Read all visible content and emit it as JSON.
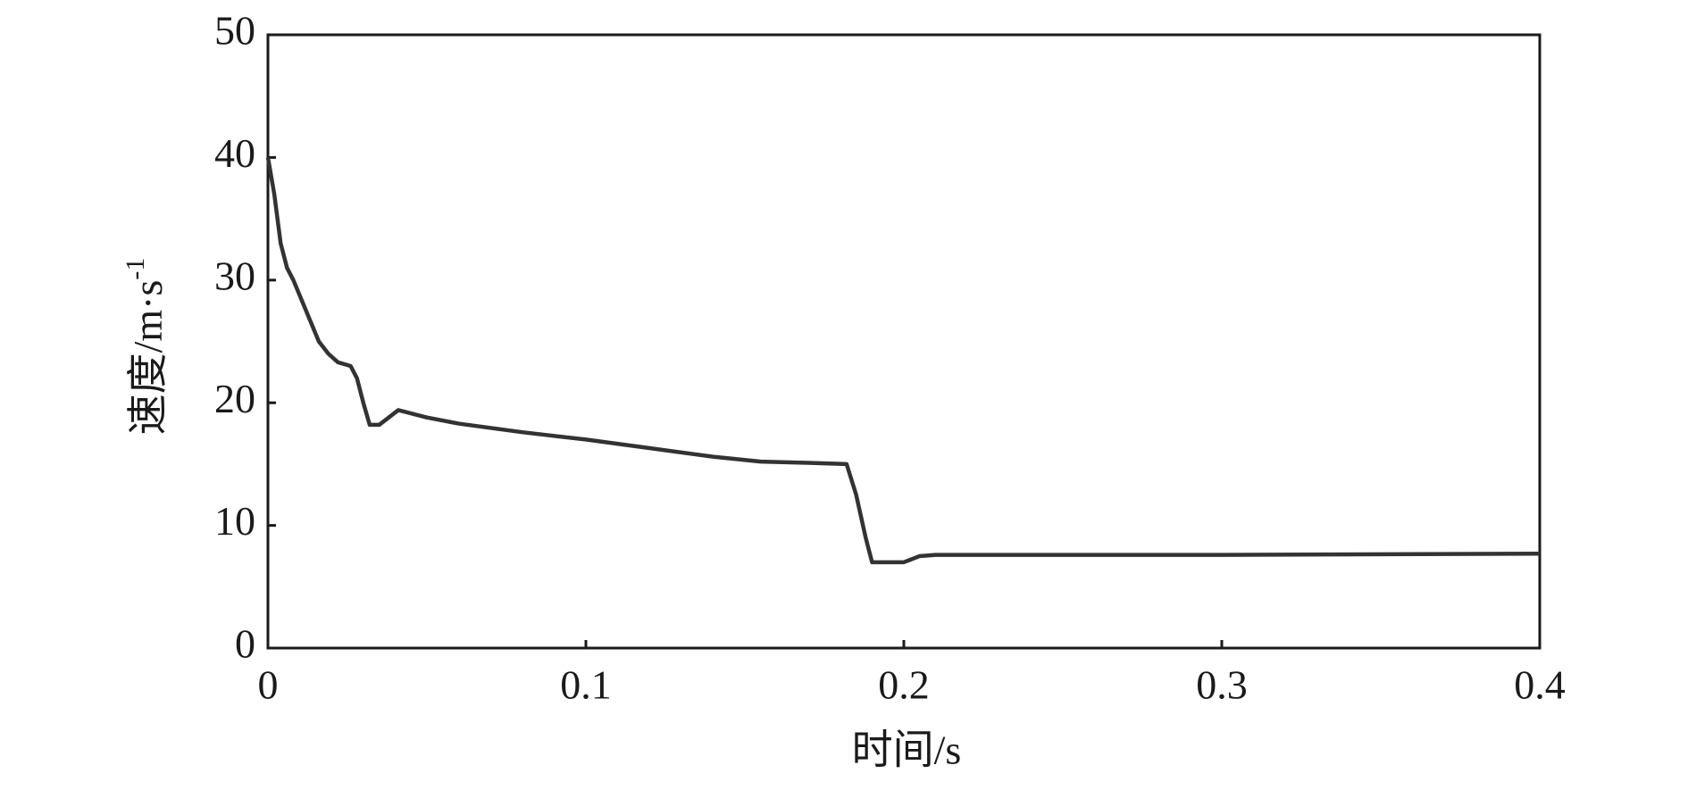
{
  "chart_data": {
    "type": "line",
    "x_label": "时间/s",
    "y_label": "速度/m·s",
    "y_label_exponent": "-1",
    "x": [
      0,
      0.002,
      0.004,
      0.006,
      0.008,
      0.012,
      0.016,
      0.019,
      0.022,
      0.026,
      0.028,
      0.03,
      0.032,
      0.035,
      0.038,
      0.041,
      0.05,
      0.06,
      0.08,
      0.1,
      0.12,
      0.14,
      0.155,
      0.17,
      0.182,
      0.185,
      0.188,
      0.19,
      0.2,
      0.205,
      0.21,
      0.3,
      0.4
    ],
    "series": [
      {
        "color": "#333333",
        "values": [
          40,
          37,
          33,
          31,
          30,
          27.5,
          25,
          24,
          23.3,
          23,
          22,
          20,
          18.2,
          18.2,
          18.8,
          19.4,
          18.8,
          18.3,
          17.6,
          17,
          16.3,
          15.6,
          15.2,
          15.1,
          15,
          12.5,
          9,
          7,
          7,
          7.5,
          7.6,
          7.6,
          7.7
        ]
      }
    ],
    "xlim": [
      0,
      0.4
    ],
    "xticks": [
      0,
      0.1,
      0.2,
      0.3,
      0.4
    ],
    "ylim": [
      0,
      50
    ],
    "yticks": [
      0,
      10,
      20,
      30,
      40,
      50
    ]
  }
}
